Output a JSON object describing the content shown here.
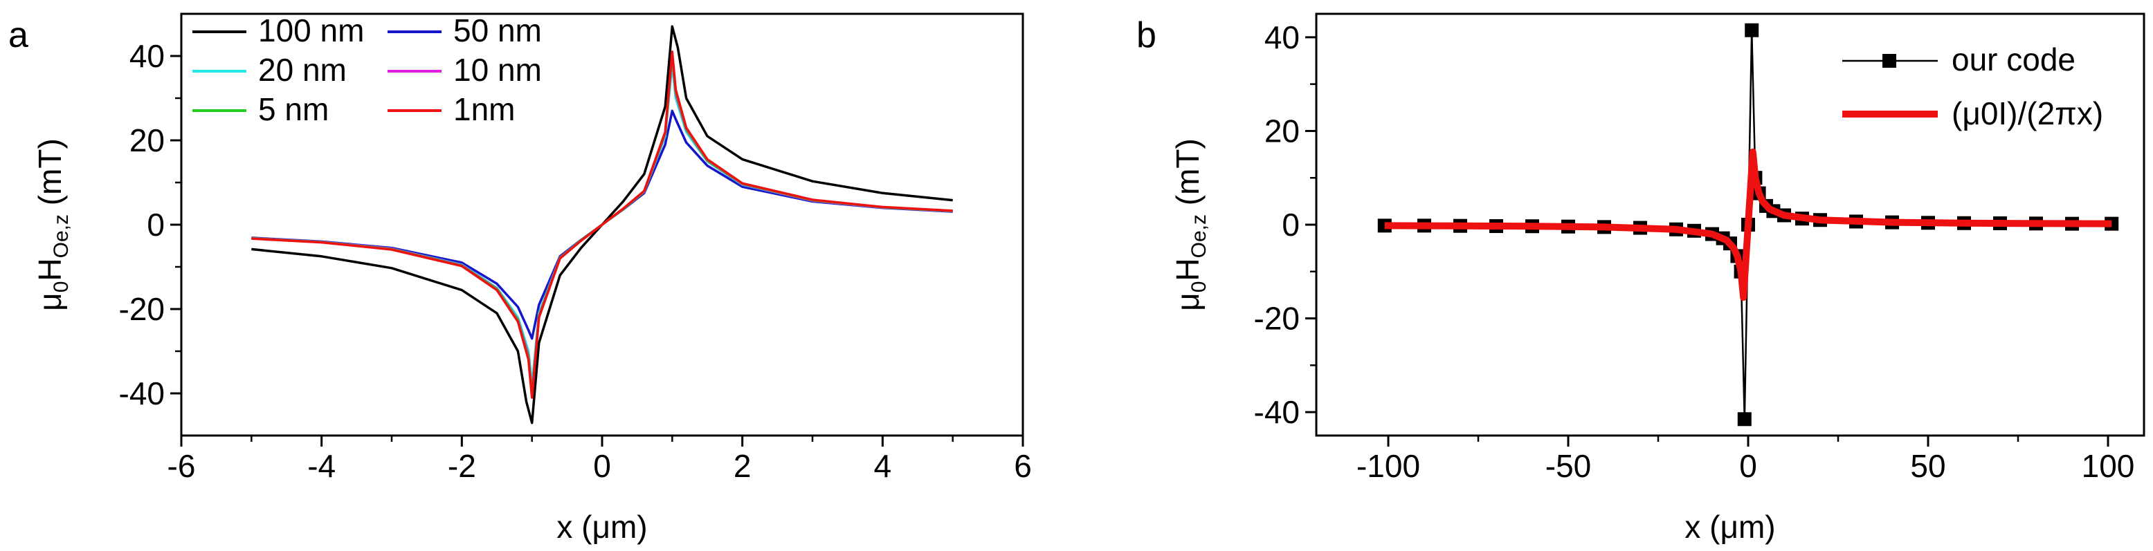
{
  "panels": [
    {
      "panel_label": "a",
      "ylabel_main": "μ",
      "ylabel_sub1": "0",
      "ylabel_mid": "H",
      "ylabel_sub2": "Oe,z",
      "ylabel_unit": " (mT)",
      "xlabel": "x (μm)"
    },
    {
      "panel_label": "b",
      "ylabel_main": "μ",
      "ylabel_sub1": "0",
      "ylabel_mid": "H",
      "ylabel_sub2": "Oe,z",
      "ylabel_unit": " (mT)",
      "xlabel": "x (μm)"
    }
  ],
  "chart_data": [
    {
      "type": "line",
      "panel": "a",
      "xlim": [
        -6,
        6
      ],
      "ylim": [
        -50,
        50
      ],
      "xticks": [
        -6,
        -4,
        -2,
        0,
        2,
        4,
        6
      ],
      "yticks": [
        -40,
        -20,
        0,
        20,
        40
      ],
      "xtick_labels": [
        "-6",
        "-4",
        "-2",
        "0",
        "2",
        "4",
        "6"
      ],
      "ytick_labels": [
        "-40",
        "-20",
        "0",
        "20",
        "40"
      ],
      "legend_position": "top-left",
      "grid": false,
      "series": [
        {
          "name": "100 nm",
          "color": "#000000",
          "x": [
            -5,
            -4,
            -3,
            -2,
            -1.5,
            -1.2,
            -1.08,
            -1.0,
            -0.9,
            -0.6,
            -0.3,
            0,
            0.3,
            0.6,
            0.9,
            1.0,
            1.08,
            1.2,
            1.5,
            2,
            3,
            4,
            5
          ],
          "y": [
            -5.8,
            -7.5,
            -10.3,
            -15.5,
            -21,
            -30,
            -42,
            -47,
            -28,
            -12,
            -5.5,
            0,
            5.5,
            12,
            28,
            47,
            42,
            30,
            21,
            15.5,
            10.3,
            7.5,
            5.8
          ]
        },
        {
          "name": "50 nm",
          "color": "#1515cc",
          "x": [
            -5,
            -4,
            -3,
            -2,
            -1.5,
            -1.2,
            -1.05,
            -1.0,
            -0.9,
            -0.6,
            -0.3,
            0,
            0.3,
            0.6,
            0.9,
            1.0,
            1.05,
            1.2,
            1.5,
            2,
            3,
            4,
            5
          ],
          "y": [
            -3.1,
            -4,
            -5.5,
            -9,
            -14,
            -19.5,
            -25,
            -27,
            -19,
            -7.5,
            -3.6,
            0,
            3.6,
            7.5,
            19,
            27,
            25,
            19.5,
            14,
            9,
            5.5,
            4,
            3.1
          ]
        },
        {
          "name": "20 nm",
          "color": "#22e8e8",
          "x": [
            -5,
            -4,
            -3,
            -2,
            -1.5,
            -1.2,
            -1.05,
            -1.0,
            -0.9,
            -0.6,
            -0.3,
            0,
            0.3,
            0.6,
            0.9,
            1.0,
            1.05,
            1.2,
            1.5,
            2,
            3,
            4,
            5
          ],
          "y": [
            -3.2,
            -4.1,
            -5.7,
            -9.5,
            -15,
            -22,
            -30,
            -38,
            -21,
            -7.8,
            -3.7,
            0,
            3.7,
            7.8,
            21,
            38,
            30,
            22,
            15,
            9.5,
            5.7,
            4.1,
            3.2
          ]
        },
        {
          "name": "10 nm",
          "color": "#e020e0",
          "x": [
            -5,
            -4,
            -3,
            -2,
            -1.5,
            -1.2,
            -1.05,
            -1.0,
            -0.9,
            -0.6,
            -0.3,
            0,
            0.3,
            0.6,
            0.9,
            1.0,
            1.05,
            1.2,
            1.5,
            2,
            3,
            4,
            5
          ],
          "y": [
            -3.2,
            -4.1,
            -5.7,
            -9.6,
            -15.2,
            -22.5,
            -31,
            -40,
            -21.5,
            -7.8,
            -3.7,
            0,
            3.7,
            7.8,
            21.5,
            40,
            31,
            22.5,
            15.2,
            9.6,
            5.7,
            4.1,
            3.2
          ]
        },
        {
          "name": "5 nm",
          "color": "#22cc22",
          "x": [
            -5,
            -4,
            -3,
            -2,
            -1.5,
            -1.2,
            -1.05,
            -1.0,
            -0.9,
            -0.6,
            -0.3,
            0,
            0.3,
            0.6,
            0.9,
            1.0,
            1.05,
            1.2,
            1.5,
            2,
            3,
            4,
            5
          ],
          "y": [
            -3.25,
            -4.15,
            -5.8,
            -9.7,
            -15.3,
            -22.7,
            -31.5,
            -40.5,
            -21.7,
            -7.9,
            -3.7,
            0,
            3.7,
            7.9,
            21.7,
            40.5,
            31.5,
            22.7,
            15.3,
            9.7,
            5.8,
            4.15,
            3.25
          ]
        },
        {
          "name": "1nm",
          "color": "#ee1111",
          "x": [
            -5,
            -4,
            -3,
            -2,
            -1.5,
            -1.2,
            -1.05,
            -1.0,
            -0.9,
            -0.6,
            -0.3,
            0,
            0.3,
            0.6,
            0.9,
            1.0,
            1.05,
            1.2,
            1.5,
            2,
            3,
            4,
            5
          ],
          "y": [
            -3.3,
            -4.2,
            -5.9,
            -9.8,
            -15.5,
            -23,
            -32,
            -41,
            -22,
            -8,
            -3.8,
            0,
            3.8,
            8,
            22,
            41,
            32,
            23,
            15.5,
            9.8,
            5.9,
            4.2,
            3.3
          ]
        }
      ]
    },
    {
      "type": "line",
      "panel": "b",
      "xlim": [
        -120,
        110
      ],
      "ylim": [
        -45,
        45
      ],
      "xticks": [
        -100,
        -50,
        0,
        50,
        100
      ],
      "yticks": [
        -40,
        -20,
        0,
        20,
        40
      ],
      "xtick_labels": [
        "-100",
        "-50",
        "0",
        "50",
        "100"
      ],
      "ytick_labels": [
        "-40",
        "-20",
        "0",
        "20",
        "40"
      ],
      "legend_position": "top-right",
      "grid": false,
      "series": [
        {
          "name": "our code",
          "color": "#000000",
          "marker": "square",
          "x": [
            -101,
            -90,
            -80,
            -70,
            -60,
            -50,
            -40,
            -30,
            -20,
            -15,
            -10,
            -7,
            -5,
            -3,
            -2,
            -1,
            0,
            1,
            2,
            3,
            5,
            7,
            10,
            15,
            20,
            30,
            40,
            50,
            60,
            70,
            80,
            90,
            101
          ],
          "y": [
            -0.2,
            -0.2,
            -0.25,
            -0.3,
            -0.33,
            -0.4,
            -0.5,
            -0.67,
            -1,
            -1.3,
            -2,
            -2.9,
            -4,
            -6.7,
            -10,
            -41.5,
            0,
            41.5,
            10,
            6.7,
            4,
            2.9,
            2,
            1.3,
            1,
            0.67,
            0.5,
            0.4,
            0.33,
            0.3,
            0.25,
            0.2,
            0.2
          ]
        },
        {
          "name": "(μ0I)/(2πx)",
          "color": "#ee1111",
          "x": [
            -101,
            -80,
            -60,
            -40,
            -20,
            -10,
            -6,
            -4,
            -3,
            -2,
            -1.3,
            1.3,
            2,
            3,
            4,
            6,
            10,
            20,
            40,
            60,
            80,
            101
          ],
          "y": [
            -0.2,
            -0.25,
            -0.33,
            -0.5,
            -1,
            -2,
            -3.3,
            -5,
            -6.7,
            -10,
            -15.5,
            15.5,
            10,
            6.7,
            5,
            3.3,
            2,
            1,
            0.5,
            0.33,
            0.25,
            0.2
          ]
        }
      ]
    }
  ]
}
